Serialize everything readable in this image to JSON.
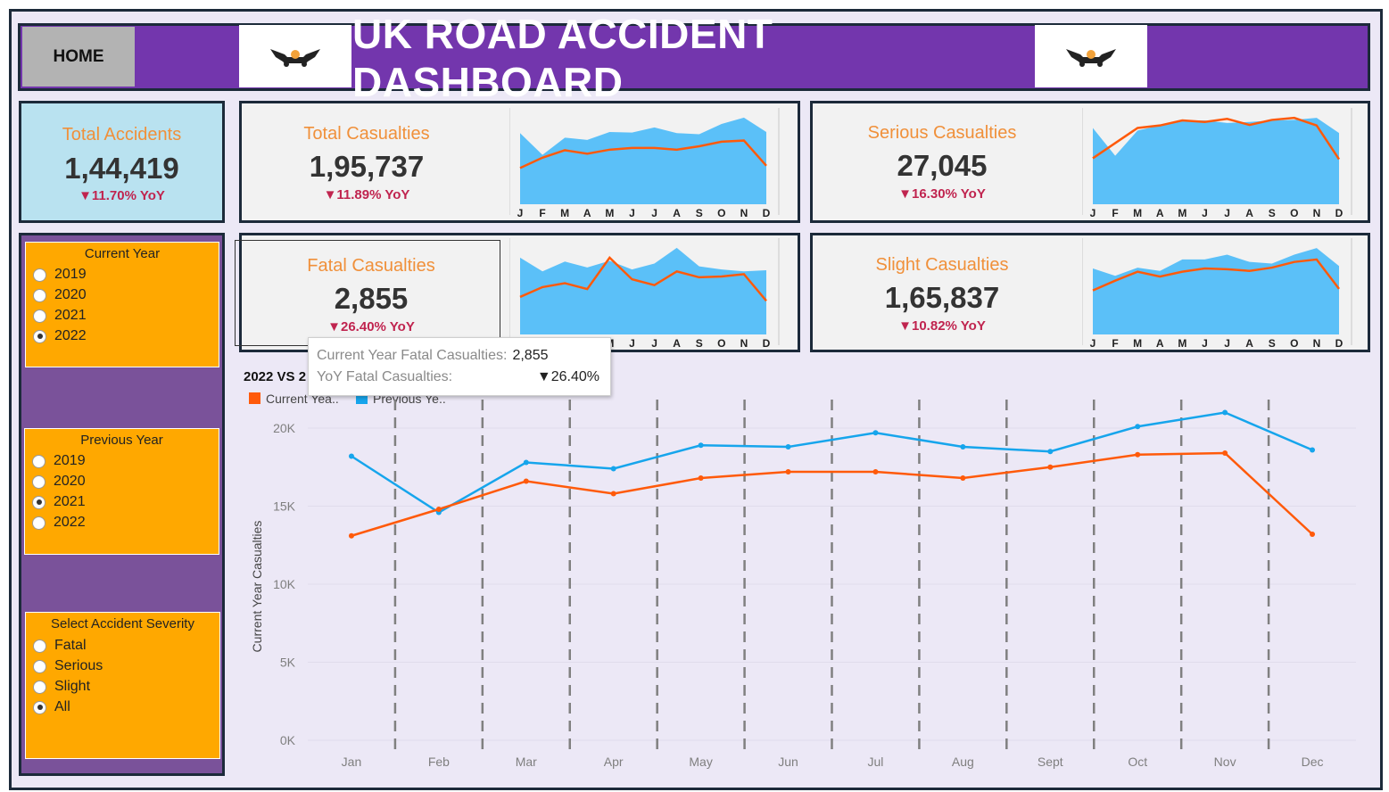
{
  "header": {
    "home_label": "HOME",
    "title": "UK ROAD ACCIDENT DASHBOARD",
    "logo_icon": "car-crash-icon"
  },
  "kpis": {
    "total_accidents": {
      "title": "Total Accidents",
      "value": "1,44,419",
      "yoy": "▼11.70% YoY"
    },
    "total_casualties": {
      "title": "Total Casualties",
      "value": "1,95,737",
      "yoy": "▼11.89% YoY"
    },
    "serious_casualties": {
      "title": "Serious Casualties",
      "value": "27,045",
      "yoy": "▼16.30% YoY"
    },
    "fatal_casualties": {
      "title": "Fatal Casualties",
      "value": "2,855",
      "yoy": "▼26.40% YoY"
    },
    "slight_casualties": {
      "title": "Slight Casualties",
      "value": "1,65,837",
      "yoy": "▼10.82% YoY"
    }
  },
  "spark_months": [
    "J",
    "F",
    "M",
    "A",
    "M",
    "J",
    "J",
    "A",
    "S",
    "O",
    "N",
    "D"
  ],
  "filters": {
    "current_year": {
      "title": "Current Year",
      "options": [
        "2019",
        "2020",
        "2021",
        "2022"
      ],
      "selected": "2022"
    },
    "previous_year": {
      "title": "Previous Year",
      "options": [
        "2019",
        "2020",
        "2021",
        "2022"
      ],
      "selected": "2021"
    },
    "severity": {
      "title": "Select Accident Severity",
      "options": [
        "Fatal",
        "Serious",
        "Slight",
        "All"
      ],
      "selected": "All"
    }
  },
  "tooltip": {
    "row1_label": "Current Year Fatal Casualties:",
    "row1_value": "2,855",
    "row2_label": "YoY Fatal Casualties:",
    "row2_value": "▼26.40%"
  },
  "colors": {
    "current": "#ff5a0a",
    "previous": "#16a5ec",
    "accent": "#7336ad",
    "kpi_title": "#f0903a",
    "yoy": "#c0244f"
  },
  "chart_data": {
    "type": "line",
    "title": "2022 VS 2",
    "ylabel": "Current Year Casualties",
    "categories": [
      "Jan",
      "Feb",
      "Mar",
      "Apr",
      "May",
      "Jun",
      "Jul",
      "Aug",
      "Sept",
      "Oct",
      "Nov",
      "Dec"
    ],
    "yticks": [
      "0K",
      "5K",
      "10K",
      "15K",
      "20K"
    ],
    "ylim": [
      0,
      22000
    ],
    "series": [
      {
        "name": "Current Yea..",
        "values": [
          13100,
          14800,
          16600,
          15800,
          16800,
          17200,
          17200,
          16800,
          17500,
          18300,
          18400,
          13200
        ]
      },
      {
        "name": "Previous Ye..",
        "values": [
          18200,
          14600,
          17800,
          17400,
          18900,
          18800,
          19700,
          18800,
          18500,
          20100,
          21000,
          18600
        ]
      }
    ]
  },
  "sparklines": {
    "total_casualties": {
      "current": [
        14100,
        15900,
        17200,
        16600,
        17300,
        17600,
        17600,
        17300,
        17900,
        18700,
        18900,
        14500
      ],
      "previous": [
        20200,
        16400,
        19400,
        19000,
        20400,
        20300,
        21200,
        20200,
        20000,
        21800,
        22900,
        20400
      ]
    },
    "serious_casualties": {
      "current": [
        2000,
        2300,
        2600,
        2650,
        2750,
        2720,
        2780,
        2660,
        2760,
        2800,
        2650,
        1980
      ],
      "previous": [
        2600,
        2050,
        2550,
        2650,
        2750,
        2750,
        2700,
        2720,
        2750,
        2760,
        2800,
        2500
      ]
    },
    "fatal_casualties": {
      "current": [
        200,
        225,
        235,
        220,
        300,
        245,
        230,
        265,
        250,
        252,
        258,
        190
      ],
      "previous": [
        300,
        265,
        290,
        275,
        292,
        270,
        285,
        325,
        278,
        270,
        265,
        268
      ]
    },
    "slight_casualties": {
      "current": [
        12000,
        13200,
        14300,
        13700,
        14300,
        14700,
        14600,
        14400,
        14800,
        15500,
        15800,
        12200
      ],
      "previous": [
        14700,
        13800,
        14800,
        14400,
        15800,
        15800,
        16400,
        15500,
        15300,
        16400,
        17200,
        15000
      ]
    }
  }
}
